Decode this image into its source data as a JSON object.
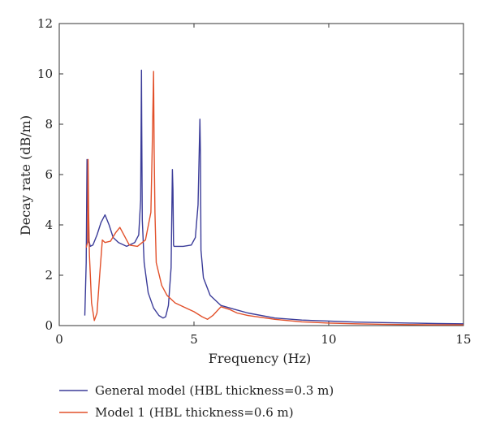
{
  "chart_data": {
    "type": "line",
    "title": "",
    "xlabel": "Frequency (Hz)",
    "ylabel": "Decay rate (dB/m)",
    "xlim": [
      0,
      15
    ],
    "ylim": [
      0,
      12
    ],
    "xticks": [
      0,
      5,
      10,
      15
    ],
    "yticks": [
      0,
      2,
      4,
      6,
      8,
      10,
      12
    ],
    "grid": false,
    "legend_position": "bottom-left-outside",
    "series": [
      {
        "name": "General model (HBL thickness=0.3 m)",
        "color": "#3b3c99",
        "x": [
          0.95,
          1.0,
          1.03,
          1.05,
          1.07,
          1.08,
          1.1,
          1.15,
          1.25,
          1.4,
          1.55,
          1.7,
          1.85,
          2.0,
          2.2,
          2.5,
          2.8,
          2.95,
          3.02,
          3.05,
          3.06,
          3.08,
          3.15,
          3.3,
          3.5,
          3.7,
          3.85,
          3.95,
          4.05,
          4.15,
          4.2,
          4.22,
          4.24,
          4.26,
          4.35,
          4.6,
          4.9,
          5.05,
          5.15,
          5.22,
          5.24,
          5.26,
          5.35,
          5.6,
          6.0,
          6.5,
          7.0,
          8.0,
          9.0,
          10.0,
          11.0,
          12.0,
          13.0,
          14.0,
          15.0
        ],
        "y": [
          0.4,
          2.5,
          6.6,
          5.5,
          3.5,
          3.3,
          3.4,
          3.15,
          3.2,
          3.6,
          4.1,
          4.4,
          4.0,
          3.5,
          3.3,
          3.15,
          3.3,
          3.6,
          5.0,
          10.15,
          8.0,
          4.2,
          2.5,
          1.3,
          0.7,
          0.4,
          0.3,
          0.35,
          0.8,
          2.3,
          6.2,
          5.4,
          3.2,
          3.15,
          3.15,
          3.15,
          3.2,
          3.5,
          4.8,
          8.2,
          6.7,
          3.0,
          1.9,
          1.2,
          0.8,
          0.65,
          0.5,
          0.3,
          0.22,
          0.18,
          0.14,
          0.12,
          0.1,
          0.08,
          0.07
        ]
      },
      {
        "name": "Model 1 (HBL thickness=0.6 m)",
        "color": "#e2502a",
        "x": [
          1.0,
          1.05,
          1.07,
          1.09,
          1.12,
          1.2,
          1.3,
          1.4,
          1.5,
          1.6,
          1.7,
          1.9,
          2.1,
          2.25,
          2.4,
          2.6,
          2.9,
          3.2,
          3.4,
          3.45,
          3.5,
          3.52,
          3.55,
          3.6,
          3.8,
          4.0,
          4.3,
          4.6,
          5.0,
          5.3,
          5.5,
          5.7,
          6.0,
          6.3,
          6.6,
          7.0,
          8.0,
          9.0,
          10.0,
          11.0,
          12.0,
          13.0,
          14.0,
          15.0
        ],
        "y": [
          3.1,
          3.3,
          6.6,
          4.5,
          2.8,
          0.9,
          0.2,
          0.5,
          2.0,
          3.4,
          3.3,
          3.35,
          3.7,
          3.9,
          3.6,
          3.2,
          3.15,
          3.4,
          4.5,
          7.0,
          10.1,
          7.0,
          4.5,
          2.5,
          1.6,
          1.2,
          0.9,
          0.75,
          0.55,
          0.35,
          0.25,
          0.4,
          0.75,
          0.65,
          0.5,
          0.4,
          0.25,
          0.15,
          0.1,
          0.07,
          0.05,
          0.04,
          0.03,
          0.03
        ]
      }
    ]
  }
}
